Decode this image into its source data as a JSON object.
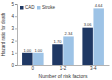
{
  "chart_data": {
    "type": "bar",
    "x_label": "Number of risk factors",
    "y_label": "Hazard ratio for death",
    "categories": [
      "0",
      "1-2",
      "3-4"
    ],
    "series": [
      {
        "name": "CAD",
        "color": "#1f3864",
        "values": [
          1.0,
          1.7,
          3.06
        ],
        "value_labels": [
          "1.00",
          "1.70",
          "3.06"
        ]
      },
      {
        "name": "Stroke",
        "color": "#9dc3e6",
        "values": [
          1.0,
          2.34,
          4.64
        ],
        "value_labels": [
          "1.00",
          "2.34",
          "4.64"
        ]
      }
    ],
    "ylim": [
      0,
      5
    ],
    "yticks": [
      0,
      1,
      2,
      3,
      4,
      5
    ],
    "grid": false,
    "legend": "upper left",
    "data_labels": true
  }
}
